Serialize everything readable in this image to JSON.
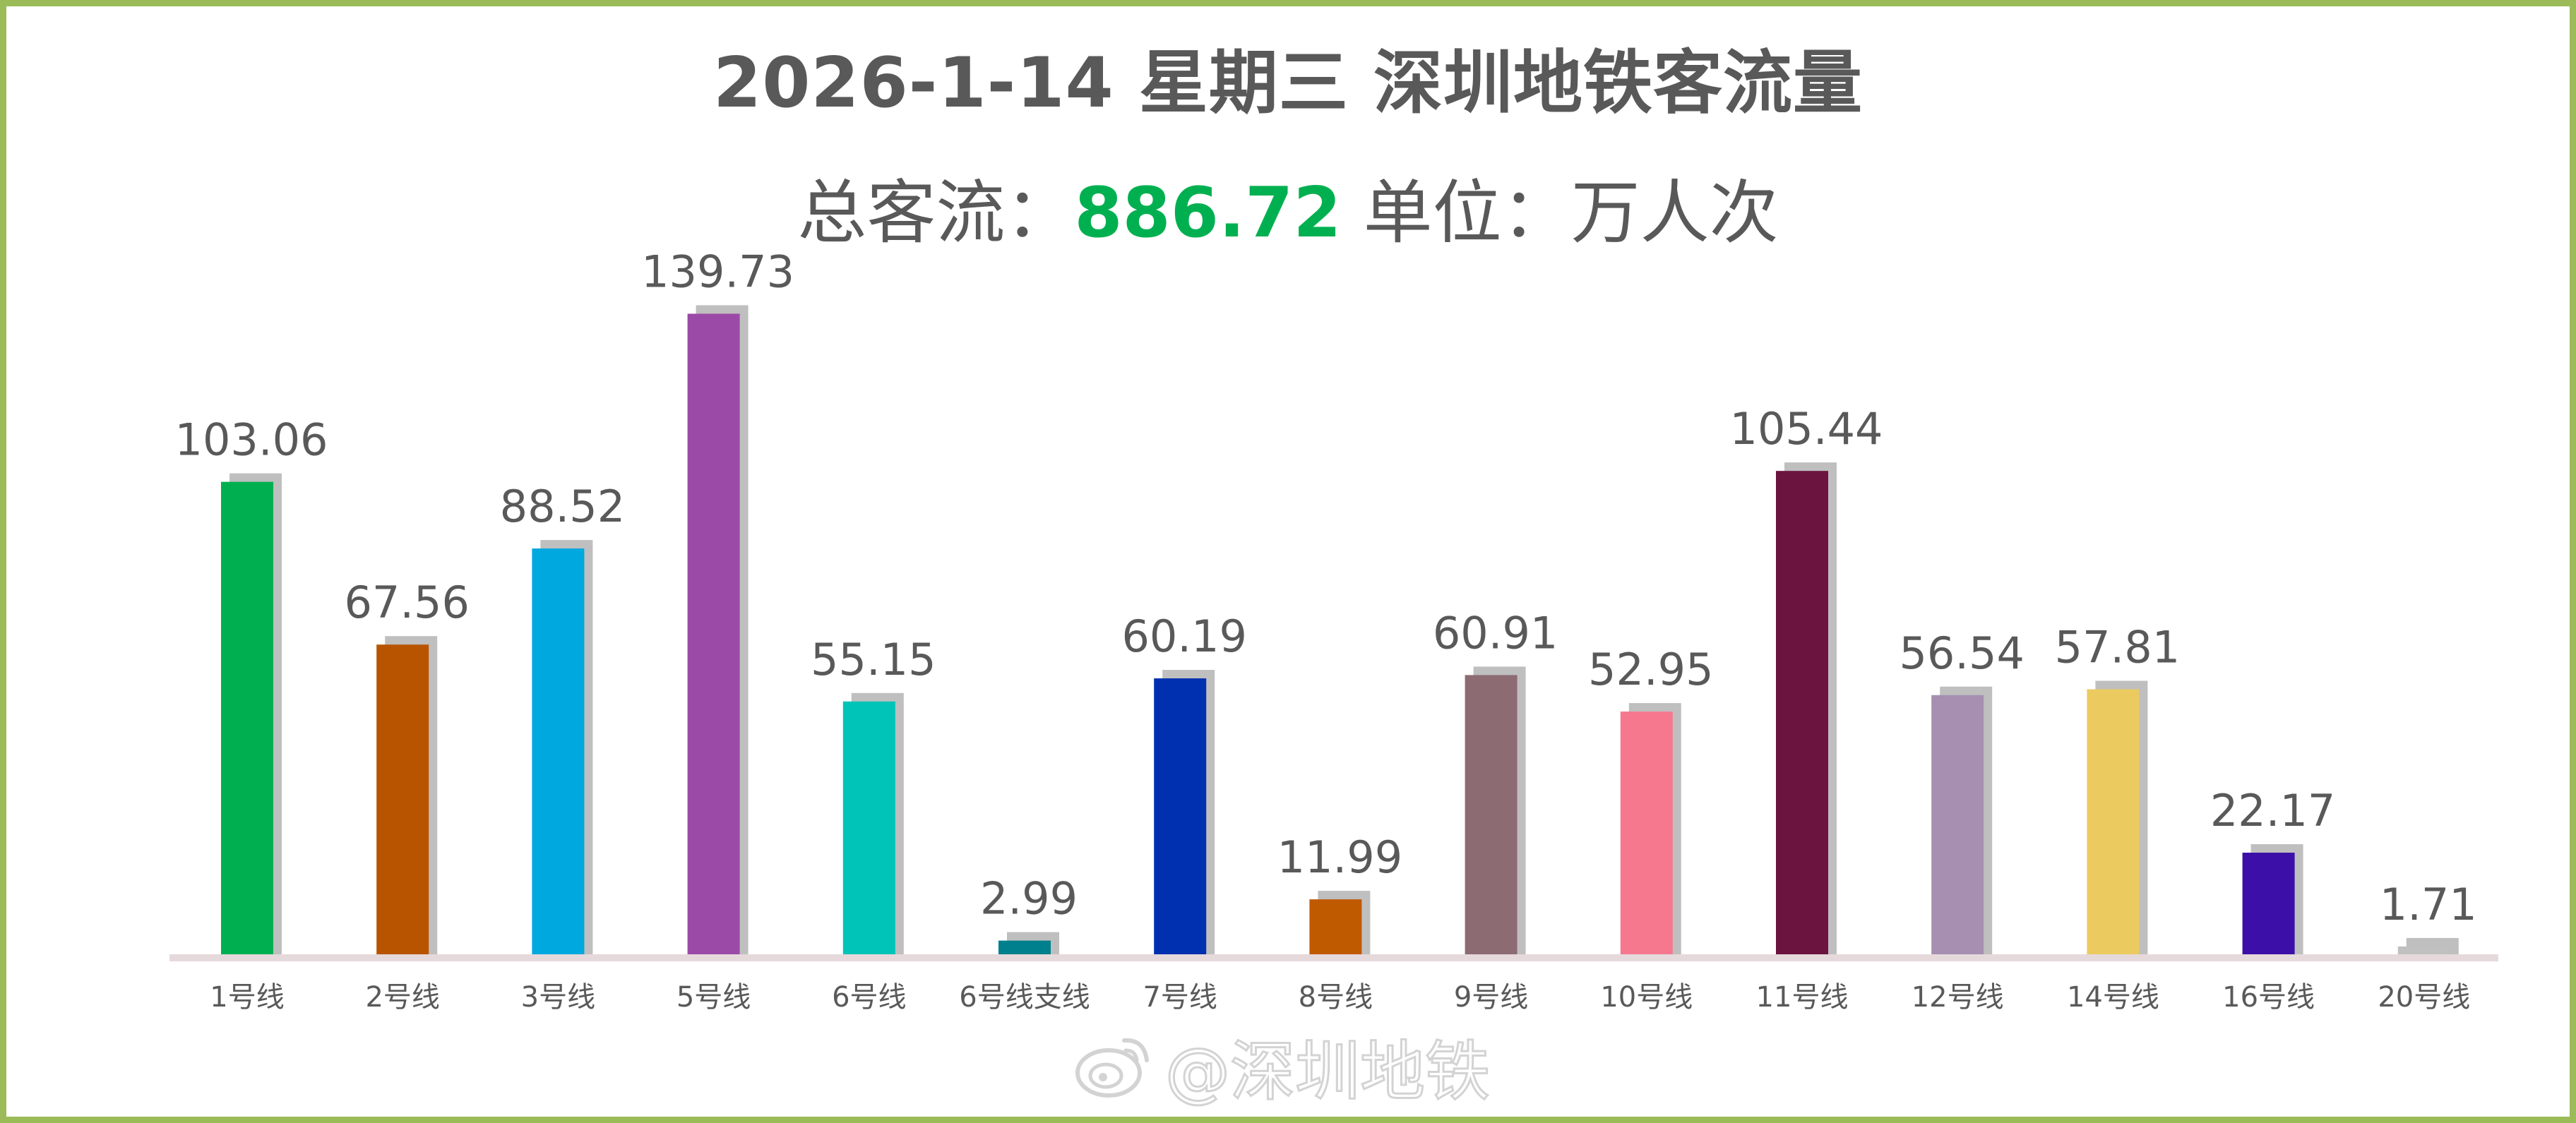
{
  "header": {
    "title": "2026-1-14 星期三 深圳地铁客流量",
    "total_prefix": "总客流：",
    "total_value": "886.72",
    "unit_text": " 单位：万人次"
  },
  "watermark": {
    "text": "@深圳地铁",
    "icon": "weibo-icon"
  },
  "colors": {
    "frame_border": "#9bbb59",
    "total_value": "#00b050",
    "text": "#595959",
    "bar_shadow": "#bfbfbf",
    "baseline": "#e6d9dc"
  },
  "chart_data": {
    "type": "bar",
    "title": "2026-1-14 星期三 深圳地铁客流量",
    "ylim": [
      0,
      140
    ],
    "grid": false,
    "categories": [
      "1号线",
      "2号线",
      "3号线",
      "5号线",
      "6号线",
      "6号线支线",
      "7号线",
      "8号线",
      "9号线",
      "10号线",
      "11号线",
      "12号线",
      "14号线",
      "16号线",
      "20号线"
    ],
    "values": [
      103.06,
      67.56,
      88.52,
      139.73,
      55.15,
      2.99,
      60.19,
      11.99,
      60.91,
      52.95,
      105.44,
      56.54,
      57.81,
      22.17,
      1.71
    ],
    "value_labels": [
      "103.06",
      "67.56",
      "88.52",
      "139.73",
      "55.15",
      "2.99",
      "60.19",
      "11.99",
      "60.91",
      "52.95",
      "105.44",
      "56.54",
      "57.81",
      "22.17",
      "1.71"
    ],
    "bar_colors": [
      "#00b050",
      "#b85400",
      "#00a8e0",
      "#9c4aa8",
      "#00c4b8",
      "#00808c",
      "#0030b0",
      "#c05a00",
      "#8c6b73",
      "#f5788f",
      "#6b1440",
      "#a68fb0",
      "#ebcb60",
      "#3c10a8",
      "#c0c0c0"
    ]
  }
}
